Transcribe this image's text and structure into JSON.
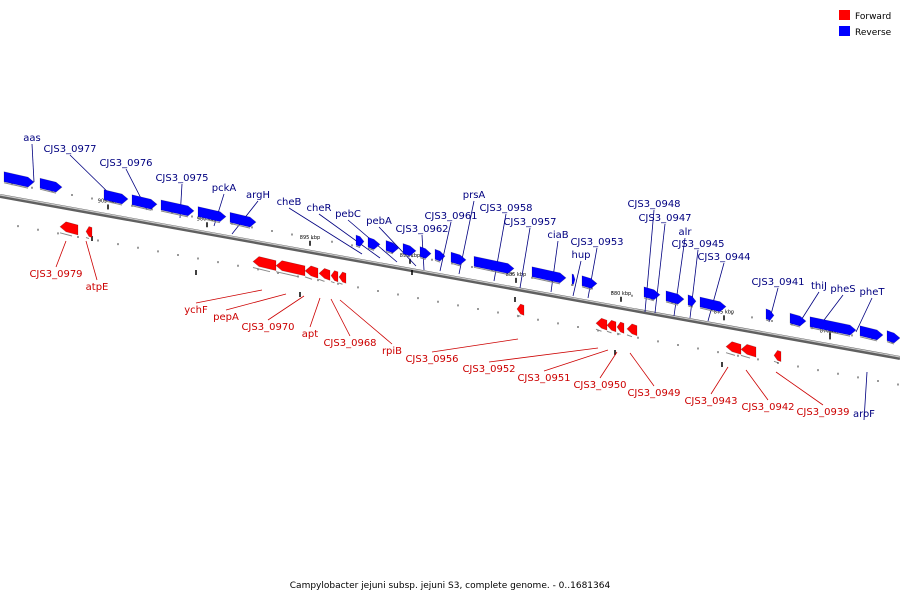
{
  "caption": "Campylobacter jejuni subsp. jejuni S3, complete genome. - 0..1681364",
  "legend": [
    {
      "label": "Forward",
      "color": "#ff0000"
    },
    {
      "label": "Reverse",
      "color": "#0000ff"
    }
  ],
  "colors": {
    "forward": "#ff0000",
    "reverse": "#0000ff",
    "backbone": "#808080"
  },
  "ticks": [
    "905 kbp",
    "900 kbp",
    "895 kbp",
    "890 kbp",
    "885 kbp",
    "880 kbp",
    "875 kbp",
    "870 kbp"
  ],
  "reverse_labels": [
    "aas",
    "CJS3_0977",
    "CJS3_0976",
    "CJS3_0975",
    "pckA",
    "argH",
    "cheB",
    "cheR",
    "pebC",
    "pebA",
    "CJS3_0962",
    "CJS3_0961",
    "prsA",
    "CJS3_0958",
    "CJS3_0957",
    "ciaB",
    "hup",
    "CJS3_0953",
    "CJS3_0948",
    "CJS3_0947",
    "alr",
    "CJS3_0945",
    "CJS3_0944",
    "CJS3_0941",
    "thiJ",
    "pheS",
    "pheT",
    "aroF"
  ],
  "forward_labels": [
    "CJS3_0979",
    "atpE",
    "ychF",
    "pepA",
    "CJS3_0970",
    "apt",
    "CJS3_0968",
    "rpiB",
    "CJS3_0956",
    "CJS3_0952",
    "CJS3_0951",
    "CJS3_0950",
    "CJS3_0949",
    "CJS3_0943",
    "CJS3_0942",
    "CJS3_0939"
  ]
}
